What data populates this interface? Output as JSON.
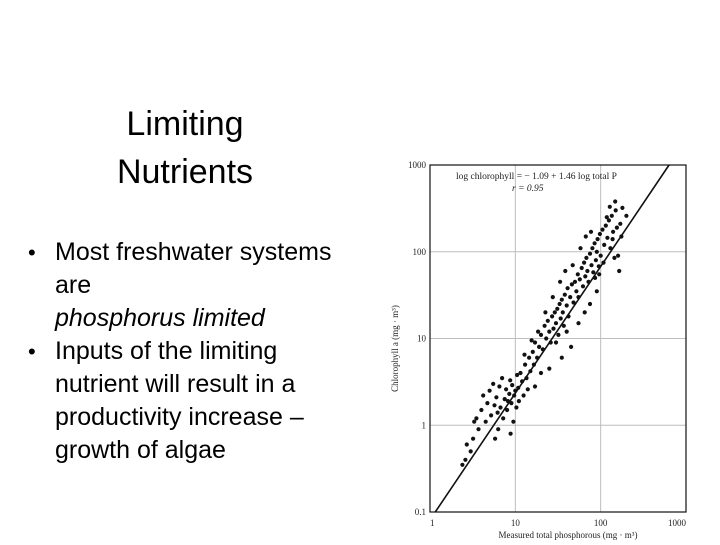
{
  "slide": {
    "title_line1": "Limiting",
    "title_line2": "Nutrients",
    "bullets": [
      {
        "text": "Most freshwater systems are",
        "italic": "phosphorus limited"
      },
      {
        "text": "Inputs of the limiting nutrient will result in a productivity increase – growth of algae"
      }
    ]
  },
  "colors": {
    "text": "#000000",
    "plot_line": "#111111",
    "grid": "#bdbdbd",
    "point": "#111111"
  },
  "chart_data": {
    "type": "scatter",
    "x_scale": "log",
    "y_scale": "log",
    "xlabel": "Measured total phosphorous (mg · m³)",
    "ylabel": "Chlorophyll a (mg · m³)",
    "xlim": [
      1,
      1000
    ],
    "ylim": [
      0.1,
      1000
    ],
    "x_ticks": [
      "1",
      "10",
      "100",
      "1000"
    ],
    "y_ticks": [
      "0.1",
      "1",
      "10",
      "100",
      "1000"
    ],
    "grid": true,
    "annotation_line1": "log chlorophyll = − 1.09 + 1.46 log total P",
    "annotation_line2": "r = 0.95",
    "regression": {
      "intercept": -1.09,
      "slope": 1.46
    },
    "points": [
      [
        2.6,
        0.4
      ],
      [
        2.7,
        0.6
      ],
      [
        3,
        0.5
      ],
      [
        3.2,
        0.7
      ],
      [
        3.5,
        1.2
      ],
      [
        3.7,
        0.9
      ],
      [
        4,
        1.5
      ],
      [
        4.2,
        2.2
      ],
      [
        4.5,
        1.1
      ],
      [
        4.7,
        1.8
      ],
      [
        5,
        2.5
      ],
      [
        5.2,
        1.3
      ],
      [
        5.5,
        3
      ],
      [
        5.7,
        1.7
      ],
      [
        6,
        2.1
      ],
      [
        6.2,
        1.4
      ],
      [
        6.5,
        2.8
      ],
      [
        6.7,
        1.6
      ],
      [
        7,
        3.5
      ],
      [
        7.2,
        1.2
      ],
      [
        7.5,
        2
      ],
      [
        7.8,
        2.6
      ],
      [
        8,
        1.5
      ],
      [
        8.2,
        1.9
      ],
      [
        8.5,
        2.3
      ],
      [
        8.7,
        3.3
      ],
      [
        9,
        1.8
      ],
      [
        9.2,
        2.9
      ],
      [
        9.5,
        1.1
      ],
      [
        9.7,
        2.2
      ],
      [
        10,
        2.5
      ],
      [
        10.3,
        1.6
      ],
      [
        10.5,
        3.8
      ],
      [
        10.8,
        2.7
      ],
      [
        11,
        1.9
      ],
      [
        11.5,
        4
      ],
      [
        12,
        3.2
      ],
      [
        12.5,
        2.2
      ],
      [
        13,
        5
      ],
      [
        13.5,
        3.5
      ],
      [
        14,
        2.6
      ],
      [
        14.5,
        6
      ],
      [
        15,
        4.2
      ],
      [
        16,
        7
      ],
      [
        16.5,
        5
      ],
      [
        17,
        9
      ],
      [
        18,
        6
      ],
      [
        19,
        8
      ],
      [
        20,
        11
      ],
      [
        21,
        7.5
      ],
      [
        22,
        14
      ],
      [
        23,
        10
      ],
      [
        24,
        16
      ],
      [
        25,
        12
      ],
      [
        26,
        9
      ],
      [
        27,
        18
      ],
      [
        28,
        13
      ],
      [
        29,
        20
      ],
      [
        30,
        15
      ],
      [
        31,
        22
      ],
      [
        32,
        11
      ],
      [
        33,
        25
      ],
      [
        34,
        17
      ],
      [
        35,
        28
      ],
      [
        36,
        20
      ],
      [
        37,
        14
      ],
      [
        38,
        32
      ],
      [
        40,
        24
      ],
      [
        41,
        38
      ],
      [
        42,
        18
      ],
      [
        44,
        30
      ],
      [
        46,
        42
      ],
      [
        48,
        26
      ],
      [
        50,
        45
      ],
      [
        52,
        35
      ],
      [
        54,
        55
      ],
      [
        55,
        30
      ],
      [
        57,
        48
      ],
      [
        60,
        65
      ],
      [
        62,
        40
      ],
      [
        64,
        75
      ],
      [
        66,
        52
      ],
      [
        68,
        85
      ],
      [
        70,
        60
      ],
      [
        72,
        45
      ],
      [
        75,
        95
      ],
      [
        78,
        70
      ],
      [
        80,
        110
      ],
      [
        82,
        58
      ],
      [
        85,
        125
      ],
      [
        88,
        80
      ],
      [
        90,
        100
      ],
      [
        92,
        140
      ],
      [
        95,
        68
      ],
      [
        98,
        160
      ],
      [
        100,
        90
      ],
      [
        105,
        180
      ],
      [
        110,
        120
      ],
      [
        115,
        200
      ],
      [
        120,
        145
      ],
      [
        125,
        230
      ],
      [
        130,
        110
      ],
      [
        135,
        260
      ],
      [
        140,
        170
      ],
      [
        145,
        85
      ],
      [
        150,
        300
      ],
      [
        155,
        190
      ],
      [
        160,
        90
      ],
      [
        170,
        210
      ],
      [
        180,
        320
      ],
      [
        200,
        260
      ],
      [
        40,
        12
      ],
      [
        45,
        8
      ],
      [
        55,
        15
      ],
      [
        65,
        20
      ],
      [
        75,
        25
      ],
      [
        90,
        35
      ],
      [
        35,
        6
      ],
      [
        30,
        9
      ],
      [
        25,
        4.5
      ],
      [
        20,
        4
      ],
      [
        17,
        2.8
      ],
      [
        6.3,
        0.9
      ],
      [
        5.8,
        0.7
      ],
      [
        8.8,
        0.8
      ],
      [
        3.3,
        1.1
      ],
      [
        2.4,
        0.35
      ],
      [
        15.5,
        9.5
      ],
      [
        12.8,
        6.5
      ],
      [
        18.5,
        12
      ],
      [
        22.5,
        20
      ],
      [
        27.5,
        30
      ],
      [
        33.5,
        45
      ],
      [
        38.5,
        60
      ],
      [
        47,
        70
      ],
      [
        58,
        110
      ],
      [
        67,
        150
      ],
      [
        77,
        170
      ],
      [
        86,
        50
      ],
      [
        96,
        55
      ],
      [
        108,
        75
      ],
      [
        118,
        250
      ],
      [
        128,
        330
      ],
      [
        138,
        140
      ],
      [
        148,
        380
      ],
      [
        165,
        60
      ],
      [
        175,
        150
      ]
    ]
  }
}
